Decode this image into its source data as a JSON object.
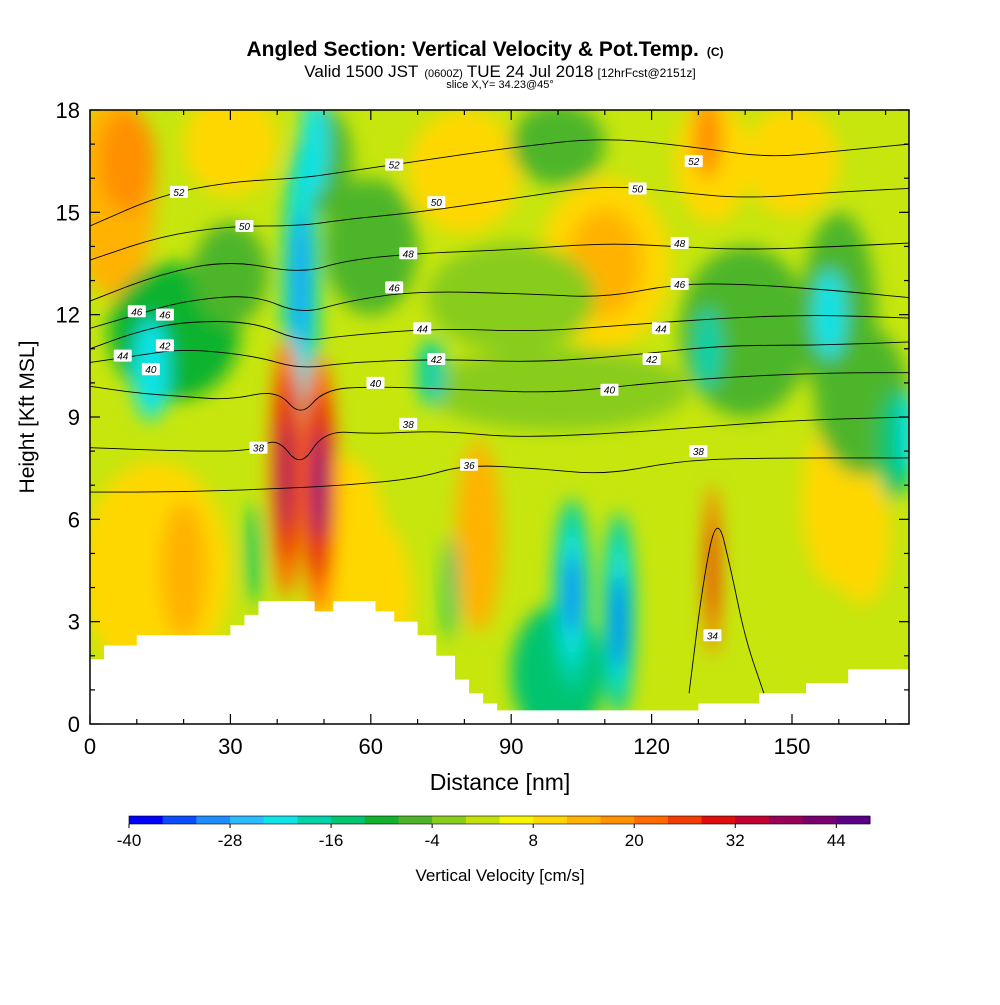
{
  "chart_data": {
    "type": "heatmap",
    "title": "Angled Section: Vertical Velocity & Pot.Temp.",
    "title_mark": "(C)",
    "subtitle_parts": [
      "Valid 1500 JST",
      "(0600Z)",
      "TUE 24 Jul 2018",
      "[12hrFcst@2151z]"
    ],
    "slice_label": "slice X,Y= 34.23@45°",
    "xlabel": "Distance [nm]",
    "ylabel": "Height [Kft MSL]",
    "xlim": [
      0,
      175
    ],
    "ylim": [
      0,
      18
    ],
    "x_ticks": [
      0,
      30,
      60,
      90,
      120,
      150
    ],
    "y_ticks": [
      0,
      3,
      6,
      9,
      12,
      15,
      18
    ],
    "colorbar": {
      "label": "Vertical Velocity [cm/s]",
      "min": -40,
      "max": 48,
      "step": 4,
      "tick_labels": [
        -40,
        -28,
        -16,
        -4,
        8,
        20,
        32,
        44
      ],
      "colors": [
        "#0000ff",
        "#0a4dff",
        "#1f8cff",
        "#2bbbff",
        "#0fe3e6",
        "#00d1a8",
        "#00c470",
        "#11b32e",
        "#4eb52b",
        "#88cc1c",
        "#c2e10a",
        "#f5f500",
        "#ffd700",
        "#ffb300",
        "#ff9000",
        "#ff6a00",
        "#f23c00",
        "#df0d0d",
        "#c00030",
        "#9a0058",
        "#7a006e",
        "#5a0088"
      ]
    },
    "theta_contours": [
      {
        "label": "34",
        "points": [
          [
            128,
            0.9
          ],
          [
            131,
            4.2
          ],
          [
            134,
            6.2
          ],
          [
            137,
            4.5
          ],
          [
            140,
            2.5
          ],
          [
            144,
            0.9
          ]
        ],
        "labels_at": [
          [
            133,
            2.6
          ]
        ]
      },
      {
        "label": "36",
        "points": [
          [
            0,
            6.8
          ],
          [
            20,
            6.8
          ],
          [
            40,
            6.9
          ],
          [
            55,
            7.0
          ],
          [
            70,
            7.2
          ],
          [
            80,
            7.6
          ],
          [
            95,
            7.5
          ],
          [
            110,
            7.3
          ],
          [
            125,
            7.7
          ],
          [
            140,
            7.8
          ],
          [
            175,
            7.8
          ]
        ],
        "labels_at": [
          [
            81,
            7.6
          ]
        ]
      },
      {
        "label": "38",
        "points": [
          [
            0,
            8.1
          ],
          [
            20,
            8.0
          ],
          [
            35,
            8.0
          ],
          [
            40,
            8.4
          ],
          [
            45,
            7.5
          ],
          [
            50,
            8.6
          ],
          [
            60,
            8.5
          ],
          [
            75,
            8.6
          ],
          [
            90,
            8.4
          ],
          [
            110,
            8.5
          ],
          [
            130,
            8.7
          ],
          [
            150,
            8.9
          ],
          [
            175,
            9.0
          ]
        ],
        "labels_at": [
          [
            36,
            8.1
          ],
          [
            68,
            8.8
          ],
          [
            130,
            8.0
          ]
        ]
      },
      {
        "label": "40",
        "points": [
          [
            0,
            9.9
          ],
          [
            10,
            9.7
          ],
          [
            20,
            9.6
          ],
          [
            30,
            9.5
          ],
          [
            40,
            9.8
          ],
          [
            45,
            9.0
          ],
          [
            50,
            9.8
          ],
          [
            60,
            9.9
          ],
          [
            80,
            9.8
          ],
          [
            100,
            9.7
          ],
          [
            120,
            10.0
          ],
          [
            140,
            10.2
          ],
          [
            160,
            10.3
          ],
          [
            175,
            10.3
          ]
        ],
        "labels_at": [
          [
            13,
            10.4
          ],
          [
            61,
            10.0
          ],
          [
            111,
            9.8
          ]
        ]
      },
      {
        "label": "42",
        "points": [
          [
            0,
            10.6
          ],
          [
            10,
            10.8
          ],
          [
            20,
            11.0
          ],
          [
            35,
            10.8
          ],
          [
            45,
            10.4
          ],
          [
            55,
            10.6
          ],
          [
            75,
            10.7
          ],
          [
            95,
            10.6
          ],
          [
            115,
            10.8
          ],
          [
            135,
            11.1
          ],
          [
            155,
            11.1
          ],
          [
            175,
            11.2
          ]
        ],
        "labels_at": [
          [
            16,
            11.1
          ],
          [
            74,
            10.7
          ],
          [
            120,
            10.7
          ]
        ]
      },
      {
        "label": "44",
        "points": [
          [
            0,
            11.0
          ],
          [
            10,
            11.5
          ],
          [
            20,
            11.8
          ],
          [
            35,
            11.8
          ],
          [
            45,
            11.2
          ],
          [
            55,
            11.4
          ],
          [
            75,
            11.6
          ],
          [
            95,
            11.5
          ],
          [
            115,
            11.7
          ],
          [
            135,
            11.9
          ],
          [
            155,
            12.0
          ],
          [
            175,
            11.9
          ]
        ],
        "labels_at": [
          [
            7,
            10.8
          ],
          [
            71,
            11.6
          ],
          [
            122,
            11.6
          ]
        ]
      },
      {
        "label": "46",
        "points": [
          [
            0,
            11.6
          ],
          [
            10,
            12.0
          ],
          [
            20,
            12.4
          ],
          [
            35,
            12.6
          ],
          [
            45,
            12.0
          ],
          [
            55,
            12.4
          ],
          [
            70,
            12.7
          ],
          [
            95,
            12.6
          ],
          [
            110,
            12.5
          ],
          [
            125,
            12.9
          ],
          [
            140,
            12.9
          ],
          [
            160,
            12.7
          ],
          [
            175,
            12.5
          ]
        ],
        "labels_at": [
          [
            10,
            12.1
          ],
          [
            16,
            12.0
          ],
          [
            65,
            12.8
          ],
          [
            126,
            12.9
          ]
        ]
      },
      {
        "label": "48",
        "points": [
          [
            0,
            12.4
          ],
          [
            15,
            13.2
          ],
          [
            30,
            13.6
          ],
          [
            45,
            13.2
          ],
          [
            55,
            13.6
          ],
          [
            70,
            13.8
          ],
          [
            90,
            13.9
          ],
          [
            110,
            14.1
          ],
          [
            125,
            14.0
          ],
          [
            140,
            13.9
          ],
          [
            160,
            14.0
          ],
          [
            175,
            14.1
          ]
        ],
        "labels_at": [
          [
            68,
            13.8
          ],
          [
            126,
            14.1
          ]
        ]
      },
      {
        "label": "50",
        "points": [
          [
            0,
            13.6
          ],
          [
            15,
            14.3
          ],
          [
            30,
            14.6
          ],
          [
            45,
            14.6
          ],
          [
            55,
            14.8
          ],
          [
            70,
            15.0
          ],
          [
            90,
            15.4
          ],
          [
            110,
            15.8
          ],
          [
            125,
            15.6
          ],
          [
            140,
            15.4
          ],
          [
            160,
            15.6
          ],
          [
            175,
            15.7
          ]
        ],
        "labels_at": [
          [
            33,
            14.6
          ],
          [
            74,
            15.3
          ],
          [
            117,
            15.7
          ]
        ]
      },
      {
        "label": "52",
        "points": [
          [
            0,
            14.6
          ],
          [
            15,
            15.5
          ],
          [
            30,
            15.9
          ],
          [
            45,
            16.0
          ],
          [
            55,
            16.2
          ],
          [
            70,
            16.5
          ],
          [
            90,
            16.9
          ],
          [
            110,
            17.2
          ],
          [
            130,
            16.9
          ],
          [
            145,
            16.6
          ],
          [
            160,
            16.8
          ],
          [
            175,
            17.0
          ]
        ],
        "labels_at": [
          [
            19,
            15.6
          ],
          [
            65,
            16.4
          ],
          [
            129,
            16.5
          ]
        ]
      }
    ],
    "terrain": [
      [
        0,
        1.9
      ],
      [
        3,
        1.9
      ],
      [
        3,
        2.3
      ],
      [
        10,
        2.3
      ],
      [
        10,
        2.6
      ],
      [
        30,
        2.6
      ],
      [
        30,
        2.9
      ],
      [
        33,
        2.9
      ],
      [
        33,
        3.2
      ],
      [
        36,
        3.2
      ],
      [
        36,
        3.6
      ],
      [
        48,
        3.6
      ],
      [
        48,
        3.3
      ],
      [
        52,
        3.3
      ],
      [
        52,
        3.6
      ],
      [
        61,
        3.6
      ],
      [
        61,
        3.3
      ],
      [
        65,
        3.3
      ],
      [
        65,
        3.0
      ],
      [
        70,
        3.0
      ],
      [
        70,
        2.6
      ],
      [
        74,
        2.6
      ],
      [
        74,
        2.0
      ],
      [
        78,
        2.0
      ],
      [
        78,
        1.3
      ],
      [
        81,
        1.3
      ],
      [
        81,
        0.9
      ],
      [
        84,
        0.9
      ],
      [
        84,
        0.6
      ],
      [
        87,
        0.6
      ],
      [
        87,
        0.4
      ],
      [
        130,
        0.4
      ],
      [
        130,
        0.6
      ],
      [
        143,
        0.6
      ],
      [
        143,
        0.9
      ],
      [
        153,
        0.9
      ],
      [
        153,
        1.2
      ],
      [
        162,
        1.2
      ],
      [
        162,
        1.6
      ],
      [
        175,
        1.6
      ]
    ]
  }
}
